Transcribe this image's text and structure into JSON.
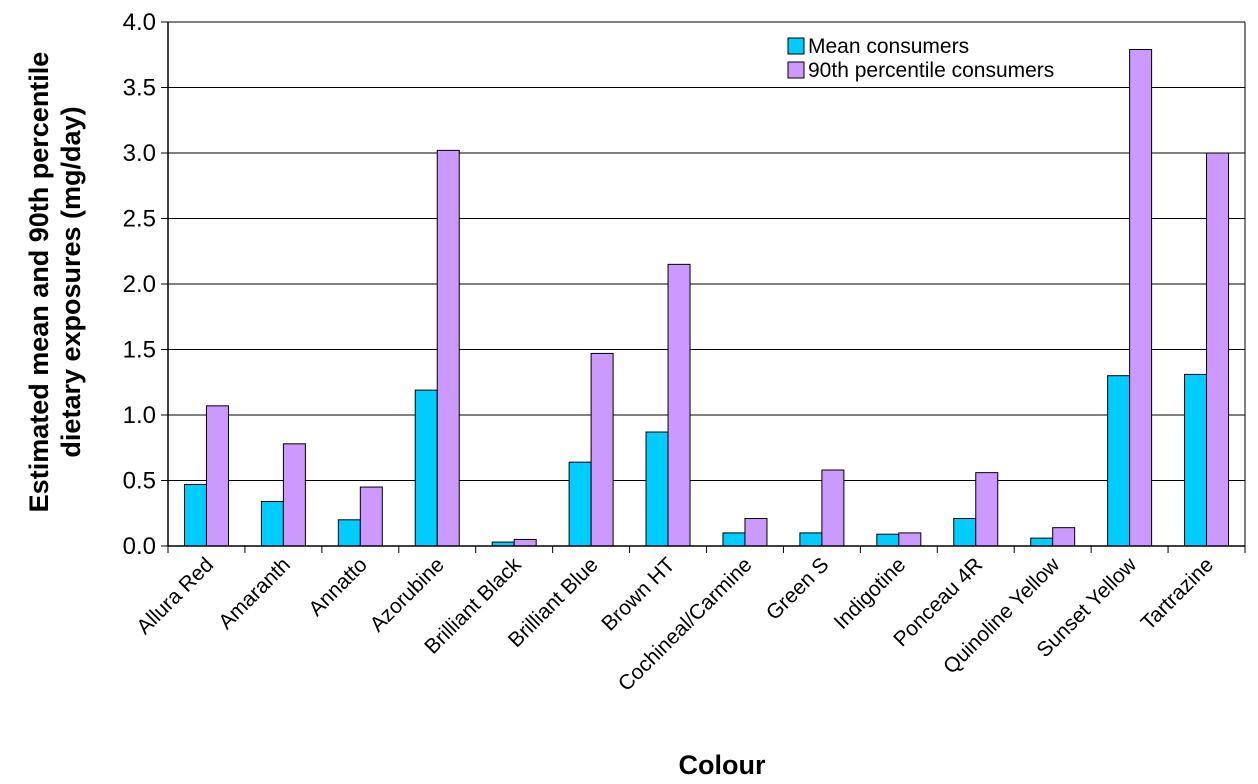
{
  "chart_data": {
    "type": "bar",
    "title": "",
    "xlabel": "Colour",
    "ylabel_lines": [
      "Estimated mean and 90th percentile",
      "dietary exposures (mg/day)"
    ],
    "ylim": [
      0,
      4.0
    ],
    "yticks": [
      "0.0",
      "0.5",
      "1.0",
      "1.5",
      "2.0",
      "2.5",
      "3.0",
      "3.5",
      "4.0"
    ],
    "grid": true,
    "legend_position": "top-right",
    "categories": [
      "Allura Red",
      "Amaranth",
      "Annatto",
      "Azorubine",
      "Brilliant Black",
      "Brilliant Blue",
      "Brown HT",
      "Cochineal/Carmine",
      "Green S",
      "Indigotine",
      "Ponceau 4R",
      "Quinoline Yellow",
      "Sunset Yellow",
      "Tartrazine"
    ],
    "series": [
      {
        "name": "Mean consumers",
        "color": "#00CCFF",
        "values": [
          0.47,
          0.34,
          0.2,
          1.19,
          0.03,
          0.64,
          0.87,
          0.1,
          0.1,
          0.09,
          0.21,
          0.06,
          1.3,
          1.31
        ]
      },
      {
        "name": "90th percentile consumers",
        "color": "#CC99FF",
        "values": [
          1.07,
          0.78,
          0.45,
          3.02,
          0.05,
          1.47,
          2.15,
          0.21,
          0.58,
          0.1,
          0.56,
          0.14,
          3.79,
          3.0
        ]
      }
    ]
  }
}
